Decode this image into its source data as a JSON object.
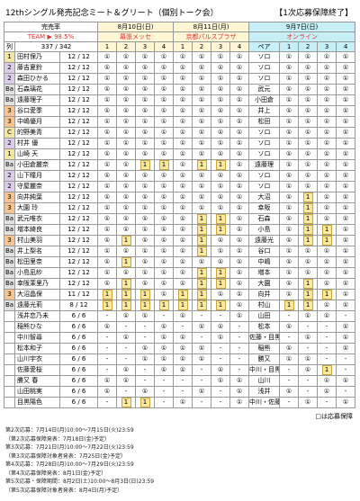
{
  "title": "12thシングル発売記念ミート＆グリート（個別トーク会）",
  "status": "【1次応募保障終了】",
  "header": {
    "rate_label": "完売率",
    "rate_prefix": "TEAM ▶",
    "rate": "98.5%",
    "col_label": "列",
    "total": "337 / 342",
    "pair_label": "ペア",
    "sessions": [
      "1",
      "2",
      "3",
      "4"
    ],
    "days": [
      {
        "date": "8月10日(日)",
        "venue": "幕張メッセ"
      },
      {
        "date": "8月11日(月)",
        "venue": "京都パルスプラザ"
      },
      {
        "date": "9月7日(日)",
        "venue": "オンライン"
      }
    ]
  },
  "tag_colors": {
    "1": "#f3e6a0",
    "2": "#ddcbeb",
    "3": "#f6c48e",
    "Ba": "#e2e2e2",
    "C": "#f3e6a0"
  },
  "rows": [
    {
      "tag": "1",
      "name": "田村保乃",
      "count": "12 / 12",
      "d1": [
        "①",
        "①",
        "①",
        "①"
      ],
      "d2": [
        "①",
        "①",
        "①",
        "①"
      ],
      "pair": "ソロ",
      "d3": [
        "①",
        "①",
        "①",
        "①"
      ],
      "hl": []
    },
    {
      "tag": "2",
      "name": "藤吉夏鈴",
      "count": "12 / 12",
      "d1": [
        "①",
        "①",
        "①",
        "①"
      ],
      "d2": [
        "①",
        "①",
        "①",
        "①"
      ],
      "pair": "ソロ",
      "d3": [
        "①",
        "①",
        "①",
        "①"
      ],
      "hl": []
    },
    {
      "tag": "2",
      "name": "森田ひかる",
      "count": "12 / 12",
      "d1": [
        "①",
        "①",
        "①",
        "①"
      ],
      "d2": [
        "①",
        "①",
        "①",
        "①"
      ],
      "pair": "ソロ",
      "d3": [
        "①",
        "①",
        "①",
        "①"
      ],
      "hl": []
    },
    {
      "tag": "Ba",
      "name": "石森璃花",
      "count": "12 / 12",
      "d1": [
        "①",
        "①",
        "①",
        "①"
      ],
      "d2": [
        "①",
        "①",
        "①",
        "①"
      ],
      "pair": "武元",
      "d3": [
        "①",
        "①",
        "①",
        "①"
      ],
      "hl": []
    },
    {
      "tag": "Ba",
      "name": "遠藤理子",
      "count": "12 / 12",
      "d1": [
        "①",
        "①",
        "①",
        "①"
      ],
      "d2": [
        "①",
        "①",
        "①",
        "①"
      ],
      "pair": "小田倉",
      "d3": [
        "①",
        "①",
        "①",
        "①"
      ],
      "hl": []
    },
    {
      "tag": "3",
      "name": "谷口愛季",
      "count": "12 / 12",
      "d1": [
        "①",
        "①",
        "①",
        "①"
      ],
      "d2": [
        "①",
        "①",
        "①",
        "①"
      ],
      "pair": "井上",
      "d3": [
        "①",
        "①",
        "①",
        "①"
      ],
      "hl": []
    },
    {
      "tag": "3",
      "name": "中嶋優月",
      "count": "12 / 12",
      "d1": [
        "①",
        "①",
        "①",
        "①"
      ],
      "d2": [
        "①",
        "①",
        "①",
        "①"
      ],
      "pair": "松田",
      "d3": [
        "①",
        "①",
        "①",
        "①"
      ],
      "hl": []
    },
    {
      "tag": "C",
      "name": "的野美青",
      "count": "12 / 12",
      "d1": [
        "①",
        "①",
        "①",
        "①"
      ],
      "d2": [
        "①",
        "①",
        "①",
        "①"
      ],
      "pair": "ソロ",
      "d3": [
        "①",
        "①",
        "①",
        "①"
      ],
      "hl": []
    },
    {
      "tag": "2",
      "name": "村井 優",
      "count": "12 / 12",
      "d1": [
        "①",
        "①",
        "①",
        "①"
      ],
      "d2": [
        "①",
        "①",
        "①",
        "①"
      ],
      "pair": "ソロ",
      "d3": [
        "①",
        "①",
        "①",
        "①"
      ],
      "hl": []
    },
    {
      "tag": "1",
      "name": "山崎 天",
      "count": "12 / 12",
      "d1": [
        "①",
        "①",
        "①",
        "①"
      ],
      "d2": [
        "①",
        "①",
        "①",
        "①"
      ],
      "pair": "ソロ",
      "d3": [
        "①",
        "①",
        "①",
        "①"
      ],
      "hl": []
    },
    {
      "tag": "Ba",
      "name": "小田倉麗奈",
      "count": "12 / 12",
      "d1": [
        "①",
        "①",
        "1",
        "1"
      ],
      "d2": [
        "①",
        "1",
        "1",
        "①"
      ],
      "pair": "遠藤理",
      "d3": [
        "①",
        "①",
        "①",
        "①"
      ],
      "hl": [
        2,
        3,
        5,
        6
      ]
    },
    {
      "tag": "2",
      "name": "山下瞳月",
      "count": "12 / 12",
      "d1": [
        "①",
        "①",
        "①",
        "①"
      ],
      "d2": [
        "①",
        "①",
        "①",
        "①"
      ],
      "pair": "ソロ",
      "d3": [
        "①",
        "①",
        "①",
        "①"
      ],
      "hl": []
    },
    {
      "tag": "2",
      "name": "守屋麗奈",
      "count": "12 / 12",
      "d1": [
        "①",
        "①",
        "①",
        "①"
      ],
      "d2": [
        "①",
        "①",
        "①",
        "①"
      ],
      "pair": "ソロ",
      "d3": [
        "①",
        "①",
        "①",
        "①"
      ],
      "hl": []
    },
    {
      "tag": "3",
      "name": "向井純葉",
      "count": "12 / 12",
      "d1": [
        "①",
        "①",
        "①",
        "①"
      ],
      "d2": [
        "①",
        "①",
        "①",
        "①"
      ],
      "pair": "大沼",
      "d3": [
        "①",
        "1",
        "①",
        "①"
      ],
      "hl": [
        9
      ]
    },
    {
      "tag": "3",
      "name": "大園 玲",
      "count": "12 / 12",
      "d1": [
        "①",
        "①",
        "①",
        "①"
      ],
      "d2": [
        "①",
        "①",
        "①",
        "①"
      ],
      "pair": "幸阪",
      "d3": [
        "①",
        "1",
        "①",
        "①"
      ],
      "hl": [
        9
      ]
    },
    {
      "tag": "Ba",
      "name": "武元唯衣",
      "count": "12 / 12",
      "d1": [
        "①",
        "①",
        "①",
        "①"
      ],
      "d2": [
        "①",
        "1",
        "1",
        "①"
      ],
      "pair": "石森",
      "d3": [
        "①",
        "1",
        "①",
        "①"
      ],
      "hl": [
        5,
        6,
        9
      ]
    },
    {
      "tag": "Ba",
      "name": "増本綺良",
      "count": "12 / 12",
      "d1": [
        "①",
        "①",
        "①",
        "①"
      ],
      "d2": [
        "①",
        "1",
        "1",
        "①"
      ],
      "pair": "小島",
      "d3": [
        "①",
        "1",
        "1",
        "①"
      ],
      "hl": [
        5,
        6,
        9,
        10
      ]
    },
    {
      "tag": "3",
      "name": "村山美羽",
      "count": "12 / 12",
      "d1": [
        "①",
        "1",
        "①",
        "①"
      ],
      "d2": [
        "①",
        "1",
        "①",
        "①"
      ],
      "pair": "遠藤光",
      "d3": [
        "①",
        "1",
        "1",
        "①"
      ],
      "hl": [
        1,
        5,
        9,
        10
      ]
    },
    {
      "tag": "Ba",
      "name": "井上梨名",
      "count": "12 / 12",
      "d1": [
        "①",
        "①",
        "①",
        "①"
      ],
      "d2": [
        "①",
        "1",
        "①",
        "①"
      ],
      "pair": "谷口",
      "d3": [
        "①",
        "①",
        "①",
        "①"
      ],
      "hl": [
        5
      ]
    },
    {
      "tag": "Ba",
      "name": "松田里奈",
      "count": "12 / 12",
      "d1": [
        "①",
        "1",
        "①",
        "①"
      ],
      "d2": [
        "①",
        "①",
        "①",
        "①"
      ],
      "pair": "中嶋",
      "d3": [
        "①",
        "①",
        "①",
        "①"
      ],
      "hl": [
        1
      ]
    },
    {
      "tag": "Ba",
      "name": "小島凪紗",
      "count": "12 / 12",
      "d1": [
        "①",
        "①",
        "①",
        "①"
      ],
      "d2": [
        "①",
        "1",
        "1",
        "①"
      ],
      "pair": "増本",
      "d3": [
        "①",
        "①",
        "①",
        "①"
      ],
      "hl": [
        5,
        6
      ]
    },
    {
      "tag": "Ba",
      "name": "幸阪茉里乃",
      "count": "12 / 12",
      "d1": [
        "①",
        "1",
        "①",
        "①"
      ],
      "d2": [
        "①",
        "1",
        "1",
        "①"
      ],
      "pair": "大園",
      "d3": [
        "①",
        "1",
        "①",
        "①"
      ],
      "hl": [
        1,
        5,
        6,
        9
      ]
    },
    {
      "tag": "3",
      "name": "大沼晶保",
      "count": "11 / 12",
      "d1": [
        "1",
        "1",
        "1",
        "①"
      ],
      "d2": [
        "1",
        "1",
        "①",
        "①"
      ],
      "pair": "向井",
      "d3": [
        "①",
        "1",
        "1",
        "①"
      ],
      "hl": [
        0,
        1,
        2,
        4,
        5,
        9,
        10
      ]
    },
    {
      "tag": "Ba",
      "name": "遠藤光莉",
      "count": "8 / 12",
      "d1": [
        "1",
        "1",
        "1",
        "1"
      ],
      "d2": [
        "1",
        "1",
        "1",
        "①"
      ],
      "pair": "村山",
      "d3": [
        "1",
        "1",
        "①",
        "①"
      ],
      "hl": [
        0,
        1,
        2,
        3,
        4,
        5,
        6,
        8,
        9
      ]
    },
    {
      "tag": "",
      "name": "浅井恋乃未",
      "count": "6 / 6",
      "d1": [
        "-",
        "①",
        "①",
        "-"
      ],
      "d2": [
        "①",
        "-",
        "-",
        "①"
      ],
      "pair": "山田",
      "d3": [
        "-",
        "①",
        "①",
        "-"
      ],
      "hl": []
    },
    {
      "tag": "",
      "name": "稲熊ひな",
      "count": "6 / 6",
      "d1": [
        "①",
        "-",
        "-",
        "①"
      ],
      "d2": [
        "-",
        "①",
        "①",
        "-"
      ],
      "pair": "松本",
      "d3": [
        "①",
        "-",
        "-",
        "①"
      ],
      "hl": []
    },
    {
      "tag": "",
      "name": "中川智尋",
      "count": "6 / 6",
      "d1": [
        "-",
        "①",
        "-",
        "①"
      ],
      "d2": [
        "①",
        "-",
        "①",
        "-"
      ],
      "pair": "佐藤・目黒",
      "d3": [
        "-",
        "①",
        "-",
        "①"
      ],
      "hl": []
    },
    {
      "tag": "",
      "name": "松本和子",
      "count": "6 / 6",
      "d1": [
        "-",
        "-",
        "①",
        "①"
      ],
      "d2": [
        "①",
        "①",
        "-",
        "-"
      ],
      "pair": "稲熊",
      "d3": [
        "①",
        "-",
        "-",
        "①"
      ],
      "hl": []
    },
    {
      "tag": "",
      "name": "山川宇衣",
      "count": "6 / 6",
      "d1": [
        "-",
        "-",
        "①",
        "①"
      ],
      "d2": [
        "①",
        "①",
        "-",
        "-"
      ],
      "pair": "勝又",
      "d3": [
        "①",
        "①",
        "-",
        "-"
      ],
      "hl": []
    },
    {
      "tag": "",
      "name": "佐藤愛桜",
      "count": "6 / 6",
      "d1": [
        "-",
        "①",
        "-",
        "①"
      ],
      "d2": [
        "①",
        "-",
        "①",
        "-"
      ],
      "pair": "中川・目黒",
      "d3": [
        "-",
        "①",
        "1",
        "-"
      ],
      "hl": [
        10
      ]
    },
    {
      "tag": "",
      "name": "勝又 春",
      "count": "6 / 6",
      "d1": [
        "①",
        "①",
        "-",
        "-"
      ],
      "d2": [
        "-",
        "-",
        "①",
        "①"
      ],
      "pair": "山川",
      "d3": [
        "-",
        "-",
        "①",
        "①"
      ],
      "hl": []
    },
    {
      "tag": "",
      "name": "山田桃実",
      "count": "6 / 6",
      "d1": [
        "①",
        "-",
        "①",
        "-"
      ],
      "d2": [
        "-",
        "①",
        "-",
        "①"
      ],
      "pair": "浅井",
      "d3": [
        "①",
        "-",
        "①",
        "-"
      ],
      "hl": []
    },
    {
      "tag": "",
      "name": "目黒陽色",
      "count": "6 / 6",
      "d1": [
        "-",
        "1",
        "1",
        "-"
      ],
      "d2": [
        "①",
        "-",
        "-",
        "①"
      ],
      "pair": "中川・佐藤",
      "d3": [
        "-",
        "①",
        "-",
        "①"
      ],
      "hl": [
        1,
        2
      ]
    }
  ],
  "legend": "□は応募保障",
  "notes": [
    "第2次応募：7月14日(月)10:00〜7月15日(火)23:59",
    "（第2次応募保障発表：7月18日(金)予定）",
    "第3次応募：7月21日(月)10:00〜7月22日(火)23:59",
    "（第3次応募保障対象者発表：7月25日(金)予定）",
    "第4次応募：7月28日(月)10:00〜7月29日(火)23:59",
    "（第4次応募保障発表：8月1日(金)予定）",
    "第5次応募・保障期間：8月2日(土)10:00〜8月3日(日)23:59",
    "（第5次応募保障対象者発表：8月4日(月)予定）"
  ]
}
